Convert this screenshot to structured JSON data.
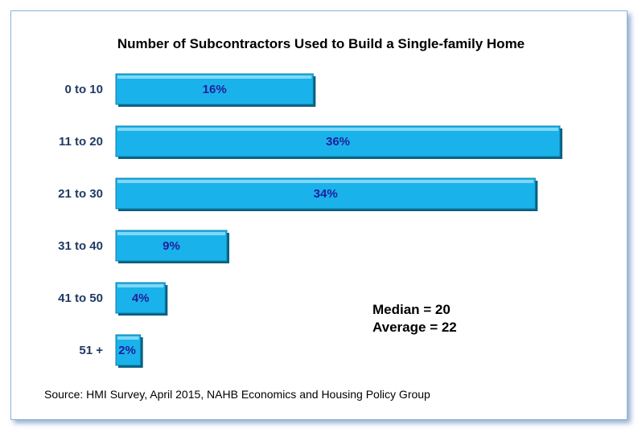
{
  "chart_data": {
    "type": "bar",
    "orientation": "horizontal",
    "title": "Number of Subcontractors Used to Build a Single-family Home",
    "categories": [
      "0 to 10",
      "11 to 20",
      "21 to 30",
      "31 to 40",
      "41 to 50",
      "51 +"
    ],
    "values": [
      16,
      36,
      34,
      9,
      4,
      2
    ],
    "value_labels": [
      "16%",
      "36%",
      "34%",
      "9%",
      "4%",
      "2%"
    ],
    "bar_color": "#1ab2ea",
    "bar_edge_color": "#0d7ea8",
    "annotations": [
      "Median = 20",
      "Average = 22"
    ],
    "source": "Source: HMI Survey,  April 2015,  NAHB Economics and Housing Policy Group",
    "xlim": [
      0,
      36
    ]
  }
}
